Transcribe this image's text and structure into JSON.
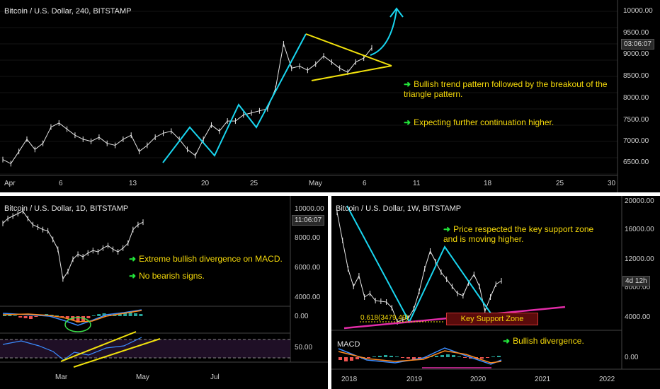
{
  "chart_data": [
    {
      "type": "line",
      "title": "Bitcoin / U.S. Dollar, 240, BITSTAMP",
      "price_badge": "03:06:07",
      "x_ticks": [
        "Apr",
        "6",
        "13",
        "20",
        "25",
        "May",
        "6",
        "11",
        "18",
        "25",
        "30"
      ],
      "y_ticks": [
        "10000.00",
        "9500.00",
        "9000.00",
        "8500.00",
        "8000.00",
        "7500.00",
        "7000.00",
        "6500.00"
      ],
      "ylim": [
        6300,
        10200
      ],
      "series": [
        {
          "values": [
            6550,
            6450,
            6750,
            7050,
            6800,
            6950,
            7350,
            7450,
            7300,
            7150,
            7050,
            7000,
            7100,
            6950,
            6900,
            7050,
            7150,
            6750,
            6900,
            7100,
            7200,
            7250,
            7050,
            6800,
            6650,
            7050,
            7400,
            7250,
            7500,
            7500,
            7650,
            7700,
            7750,
            7800,
            8300,
            9400,
            8800,
            8850,
            8750,
            8900,
            9100,
            8950,
            8800,
            8700,
            8950,
            9050,
            9300
          ]
        }
      ],
      "annotations": [
        "Bullish trend pattern followed by the breakout of the triangle pattern.",
        "Expecting further continuation higher."
      ]
    },
    {
      "type": "line",
      "title": "Bitcoin / U.S. Dollar, 1D, BITSTAMP",
      "price_badge": "11:06:07",
      "x_ticks": [
        "Mar",
        "May",
        "Jul"
      ],
      "y_ticks": [
        "10000.00",
        "8000.00",
        "6000.00",
        "4000.00"
      ],
      "macd_ticks": [
        "0.00"
      ],
      "rsi_ticks": [
        "50.00"
      ],
      "ylim": [
        3500,
        10500
      ],
      "series": [
        {
          "values": [
            9300,
            9700,
            9900,
            10100,
            10300,
            9700,
            9200,
            9000,
            8800,
            8700,
            8000,
            7200,
            4800,
            5400,
            6400,
            6800,
            6600,
            6900,
            7100,
            7000,
            7300,
            7500,
            7200,
            7000,
            7300,
            7700,
            8800,
            9200,
            9400
          ]
        }
      ],
      "annotations": [
        "Extreme bullish divergence on MACD.",
        "No bearish signs."
      ]
    },
    {
      "type": "line",
      "title": "Bitcoin / U.S. Dollar, 1W, BITSTAMP",
      "price_badge": "4d 12h",
      "x_ticks": [
        "2018",
        "2019",
        "2020",
        "2021",
        "2022"
      ],
      "y_ticks": [
        "20000.00",
        "16000.00",
        "12000.00",
        "8000.00",
        "4000.00"
      ],
      "macd_ticks": [
        "0.00"
      ],
      "ylim": [
        2500,
        20500
      ],
      "series": [
        {
          "values": [
            19000,
            15000,
            11000,
            8500,
            10000,
            7000,
            7500,
            6500,
            6400,
            6300,
            5500,
            3500,
            3800,
            4000,
            5300,
            7800,
            11000,
            13500,
            12000,
            10500,
            9500,
            8500,
            7500,
            7200,
            9000,
            10200,
            8500,
            5000,
            7000,
            8800,
            9300
          ]
        }
      ],
      "fib_label": "0.618(3479.49)",
      "zone_label": "Key Support Zone",
      "macd_label": "MACD",
      "annotations": [
        "Price respected the key support zone and is moving higher.",
        "Bullish divergence."
      ]
    }
  ]
}
